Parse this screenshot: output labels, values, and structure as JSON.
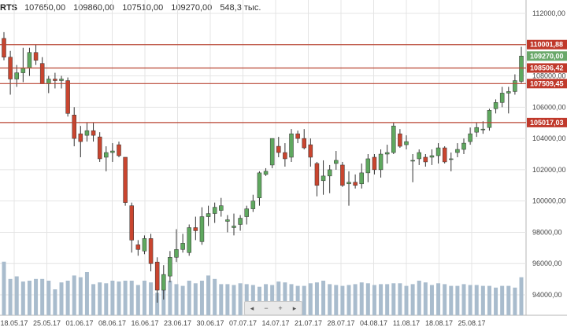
{
  "header": {
    "symbol": "RTS",
    "open": "107650,00",
    "high": "109860,00",
    "low": "107510,00",
    "close": "109270,00",
    "volume": "548,3 тыс."
  },
  "navigator": {
    "prev_icon": "chevron-left-icon",
    "zoom_out_icon": "minus-icon",
    "zoom_in_icon": "plus-icon",
    "next_icon": "chevron-right-icon",
    "prev": "◂",
    "zoom_out": "−",
    "zoom_in": "+",
    "next": "▸"
  },
  "colors": {
    "up": "#5fa85f",
    "down": "#c9452f",
    "level_line": "#b84432",
    "level_label_bg": "#c0392b",
    "last_price_bg": "#6aa86a",
    "volume": "#a9bccd",
    "grid": "#e4e4e4"
  },
  "chart_data": {
    "type": "candlestick",
    "ylim": [
      93000,
      113000
    ],
    "y_ticks": [
      "112000,00",
      "110000,00",
      "108000,00",
      "106000,00",
      "104000,00",
      "102000,00",
      "100000,00",
      "98000,00",
      "96000,00",
      "94000,00"
    ],
    "x_ticks": [
      "18.05.17",
      "25.05.17",
      "01.06.17",
      "08.06.17",
      "16.06.17",
      "23.06.17",
      "30.06.17",
      "07.07.17",
      "14.07.17",
      "21.07.17",
      "28.07.17",
      "04.08.17",
      "11.08.17",
      "18.08.17",
      "25.08.17"
    ],
    "levels": [
      {
        "value": 110001.88,
        "label": "110001,88"
      },
      {
        "value": 108506.42,
        "label": "108506,42"
      },
      {
        "value": 107509.45,
        "label": "107509,45"
      },
      {
        "value": 105017.03,
        "label": "105017,03"
      }
    ],
    "last_price": {
      "value": 109270.0,
      "label": "109270,00"
    },
    "candles": [
      {
        "o": 110400,
        "h": 110800,
        "l": 109000,
        "c": 109200
      },
      {
        "o": 109200,
        "h": 109600,
        "l": 106800,
        "c": 107800
      },
      {
        "o": 107800,
        "h": 108700,
        "l": 107300,
        "c": 108200
      },
      {
        "o": 108200,
        "h": 109800,
        "l": 107600,
        "c": 108500
      },
      {
        "o": 108500,
        "h": 109800,
        "l": 108000,
        "c": 109500
      },
      {
        "o": 109500,
        "h": 110000,
        "l": 108700,
        "c": 109000
      },
      {
        "o": 108800,
        "h": 109200,
        "l": 107500,
        "c": 107500
      },
      {
        "o": 107500,
        "h": 108000,
        "l": 106900,
        "c": 107800
      },
      {
        "o": 107800,
        "h": 108200,
        "l": 107200,
        "c": 107700
      },
      {
        "o": 107700,
        "h": 108000,
        "l": 107200,
        "c": 107800
      },
      {
        "o": 107700,
        "h": 107900,
        "l": 105400,
        "c": 105600
      },
      {
        "o": 105500,
        "h": 106000,
        "l": 103500,
        "c": 104000
      },
      {
        "o": 104300,
        "h": 104800,
        "l": 102800,
        "c": 103800
      },
      {
        "o": 104200,
        "h": 105000,
        "l": 103800,
        "c": 104500
      },
      {
        "o": 104500,
        "h": 105000,
        "l": 103800,
        "c": 104200
      },
      {
        "o": 104100,
        "h": 104400,
        "l": 102500,
        "c": 102700
      },
      {
        "o": 102800,
        "h": 103500,
        "l": 101900,
        "c": 103100
      },
      {
        "o": 103100,
        "h": 103700,
        "l": 102500,
        "c": 103200
      },
      {
        "o": 103600,
        "h": 103800,
        "l": 102800,
        "c": 102900
      },
      {
        "o": 102800,
        "h": 102800,
        "l": 99700,
        "c": 99900
      },
      {
        "o": 99700,
        "h": 99900,
        "l": 96700,
        "c": 97500
      },
      {
        "o": 97200,
        "h": 97500,
        "l": 96500,
        "c": 96900
      },
      {
        "o": 96800,
        "h": 97800,
        "l": 96600,
        "c": 97600
      },
      {
        "o": 97600,
        "h": 97900,
        "l": 95500,
        "c": 96000
      },
      {
        "o": 96100,
        "h": 96400,
        "l": 93500,
        "c": 94300
      },
      {
        "o": 94300,
        "h": 95900,
        "l": 93700,
        "c": 95300
      },
      {
        "o": 95200,
        "h": 96800,
        "l": 94800,
        "c": 96400
      },
      {
        "o": 96400,
        "h": 98200,
        "l": 96100,
        "c": 96900
      },
      {
        "o": 96900,
        "h": 97900,
        "l": 96700,
        "c": 97300
      },
      {
        "o": 96700,
        "h": 98500,
        "l": 96500,
        "c": 98300
      },
      {
        "o": 98300,
        "h": 99000,
        "l": 97500,
        "c": 98100
      },
      {
        "o": 97400,
        "h": 99600,
        "l": 97200,
        "c": 99000
      },
      {
        "o": 99000,
        "h": 99700,
        "l": 98400,
        "c": 99200
      },
      {
        "o": 99200,
        "h": 99900,
        "l": 98600,
        "c": 99600
      },
      {
        "o": 99400,
        "h": 100200,
        "l": 99000,
        "c": 99700
      },
      {
        "o": 98700,
        "h": 99100,
        "l": 98000,
        "c": 98800
      },
      {
        "o": 98300,
        "h": 99200,
        "l": 97800,
        "c": 98400
      },
      {
        "o": 98500,
        "h": 99100,
        "l": 98100,
        "c": 98900
      },
      {
        "o": 99000,
        "h": 99700,
        "l": 98500,
        "c": 99500
      },
      {
        "o": 99500,
        "h": 100400,
        "l": 99300,
        "c": 100000
      },
      {
        "o": 100200,
        "h": 101900,
        "l": 99700,
        "c": 101800
      },
      {
        "o": 101700,
        "h": 102100,
        "l": 101600,
        "c": 101900
      },
      {
        "o": 102300,
        "h": 104000,
        "l": 102100,
        "c": 104000
      },
      {
        "o": 103500,
        "h": 104100,
        "l": 102800,
        "c": 103100
      },
      {
        "o": 103100,
        "h": 103700,
        "l": 102200,
        "c": 102700
      },
      {
        "o": 102800,
        "h": 104600,
        "l": 102500,
        "c": 104300
      },
      {
        "o": 104300,
        "h": 104500,
        "l": 103700,
        "c": 104000
      },
      {
        "o": 104000,
        "h": 104600,
        "l": 103300,
        "c": 103400
      },
      {
        "o": 103600,
        "h": 104000,
        "l": 102200,
        "c": 102800
      },
      {
        "o": 102400,
        "h": 102500,
        "l": 100300,
        "c": 101000
      },
      {
        "o": 101300,
        "h": 102600,
        "l": 100400,
        "c": 101600
      },
      {
        "o": 101600,
        "h": 102300,
        "l": 100500,
        "c": 102000
      },
      {
        "o": 102400,
        "h": 103200,
        "l": 102000,
        "c": 102600
      },
      {
        "o": 102300,
        "h": 102500,
        "l": 100900,
        "c": 101000
      },
      {
        "o": 101100,
        "h": 101900,
        "l": 99700,
        "c": 101200
      },
      {
        "o": 101200,
        "h": 101700,
        "l": 100800,
        "c": 101000
      },
      {
        "o": 101100,
        "h": 102400,
        "l": 100800,
        "c": 101800
      },
      {
        "o": 101800,
        "h": 103000,
        "l": 101200,
        "c": 102700
      },
      {
        "o": 102800,
        "h": 103000,
        "l": 101700,
        "c": 102000
      },
      {
        "o": 102000,
        "h": 103300,
        "l": 101500,
        "c": 103000
      },
      {
        "o": 103000,
        "h": 103600,
        "l": 102400,
        "c": 103100
      },
      {
        "o": 103100,
        "h": 105000,
        "l": 103000,
        "c": 104800
      },
      {
        "o": 104300,
        "h": 104600,
        "l": 103400,
        "c": 103500
      },
      {
        "o": 103600,
        "h": 104200,
        "l": 103300,
        "c": 103800
      },
      {
        "o": 102600,
        "h": 103000,
        "l": 101200,
        "c": 102600
      },
      {
        "o": 102700,
        "h": 103300,
        "l": 102300,
        "c": 103100
      },
      {
        "o": 102800,
        "h": 103000,
        "l": 102200,
        "c": 102500
      },
      {
        "o": 102800,
        "h": 103300,
        "l": 102300,
        "c": 102900
      },
      {
        "o": 102900,
        "h": 103700,
        "l": 102400,
        "c": 103400
      },
      {
        "o": 103400,
        "h": 103500,
        "l": 102400,
        "c": 102500
      },
      {
        "o": 102700,
        "h": 103100,
        "l": 101900,
        "c": 102700
      },
      {
        "o": 103100,
        "h": 103700,
        "l": 102800,
        "c": 103300
      },
      {
        "o": 103300,
        "h": 104000,
        "l": 103000,
        "c": 103700
      },
      {
        "o": 103800,
        "h": 104700,
        "l": 103600,
        "c": 104300
      },
      {
        "o": 104400,
        "h": 105000,
        "l": 104100,
        "c": 104700
      },
      {
        "o": 104600,
        "h": 105100,
        "l": 104300,
        "c": 104600
      },
      {
        "o": 104700,
        "h": 105900,
        "l": 104500,
        "c": 105800
      },
      {
        "o": 105900,
        "h": 106500,
        "l": 105600,
        "c": 106300
      },
      {
        "o": 106300,
        "h": 107300,
        "l": 106000,
        "c": 106900
      },
      {
        "o": 106900,
        "h": 107300,
        "l": 105600,
        "c": 107000
      },
      {
        "o": 107000,
        "h": 108100,
        "l": 106800,
        "c": 107700
      },
      {
        "o": 107650,
        "h": 109860,
        "l": 107510,
        "c": 109270
      }
    ],
    "volume": [
      0.62,
      0.42,
      0.45,
      0.39,
      0.4,
      0.42,
      0.42,
      0.4,
      0.3,
      0.38,
      0.4,
      0.46,
      0.44,
      0.5,
      0.36,
      0.38,
      0.37,
      0.4,
      0.39,
      0.4,
      0.4,
      0.35,
      0.4,
      0.38,
      0.26,
      0.3,
      0.4,
      0.36,
      0.34,
      0.4,
      0.37,
      0.4,
      0.46,
      0.42,
      0.36,
      0.36,
      0.35,
      0.37,
      0.36,
      0.35,
      0.33,
      0.36,
      0.35,
      0.39,
      0.38,
      0.36,
      0.34,
      0.34,
      0.37,
      0.38,
      0.4,
      0.36,
      0.35,
      0.34,
      0.35,
      0.36,
      0.38,
      0.37,
      0.35,
      0.36,
      0.36,
      0.37,
      0.37,
      0.34,
      0.36,
      0.4,
      0.38,
      0.35,
      0.37,
      0.36,
      0.34,
      0.34,
      0.36,
      0.35,
      0.35,
      0.34,
      0.34,
      0.32,
      0.34,
      0.34,
      0.32,
      0.44
    ]
  }
}
